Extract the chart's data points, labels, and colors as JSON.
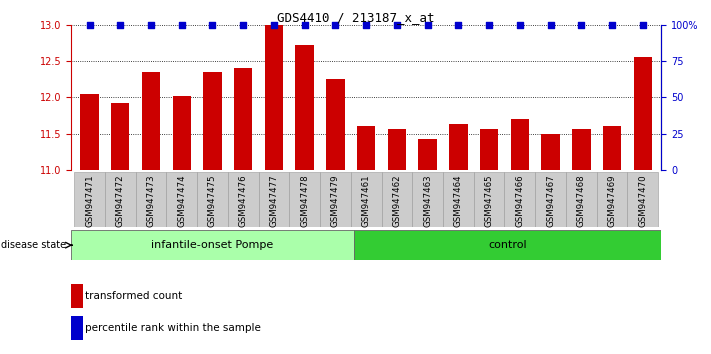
{
  "title": "GDS4410 / 213187_x_at",
  "samples": [
    "GSM947471",
    "GSM947472",
    "GSM947473",
    "GSM947474",
    "GSM947475",
    "GSM947476",
    "GSM947477",
    "GSM947478",
    "GSM947479",
    "GSM947461",
    "GSM947462",
    "GSM947463",
    "GSM947464",
    "GSM947465",
    "GSM947466",
    "GSM947467",
    "GSM947468",
    "GSM947469",
    "GSM947470"
  ],
  "transformed_count": [
    12.05,
    11.92,
    12.35,
    12.02,
    12.35,
    12.4,
    13.0,
    12.72,
    12.25,
    11.6,
    11.57,
    11.43,
    11.63,
    11.57,
    11.7,
    11.5,
    11.57,
    11.6,
    12.55
  ],
  "percentile_rank": [
    100,
    100,
    100,
    100,
    100,
    100,
    100,
    100,
    100,
    100,
    100,
    100,
    100,
    100,
    100,
    100,
    100,
    100,
    100
  ],
  "group1_label": "infantile-onset Pompe",
  "group2_label": "control",
  "group1_count": 9,
  "group2_count": 10,
  "ylim_left": [
    11,
    13
  ],
  "yticks_left": [
    11,
    11.5,
    12,
    12.5,
    13
  ],
  "ylim_right": [
    0,
    100
  ],
  "yticks_right": [
    0,
    25,
    50,
    75,
    100
  ],
  "bar_color": "#cc0000",
  "dot_color": "#0000cc",
  "bar_width": 0.6,
  "group1_bg": "#aaffaa",
  "group2_bg": "#33cc33",
  "tick_bg": "#cccccc",
  "bg_plot": "#ffffff",
  "tick_label_fontsize": 7,
  "legend_red_label": "transformed count",
  "legend_blue_label": "percentile rank within the sample",
  "disease_state_label": "disease state",
  "xticklabel_fontsize": 6.2
}
